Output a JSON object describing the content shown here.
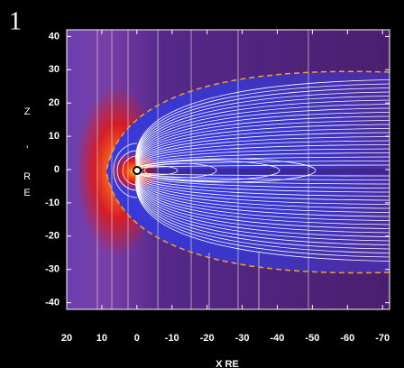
{
  "panel_label": "1",
  "chart_data": {
    "type": "image",
    "xlabel": "X RE",
    "ylabel": "Z , RE",
    "xlim": [
      20,
      -72
    ],
    "ylim": [
      -42,
      42
    ],
    "xticks": [
      20,
      10,
      0,
      -10,
      -20,
      -30,
      -40,
      -50,
      -60,
      -70
    ],
    "yticks": [
      40,
      30,
      20,
      10,
      0,
      -10,
      -20,
      -30,
      -40
    ]
  }
}
